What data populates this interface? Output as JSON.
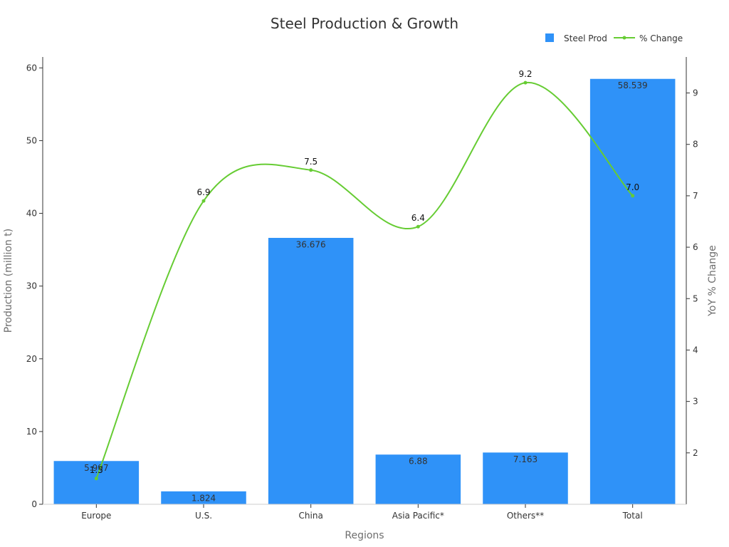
{
  "chart_data": {
    "type": "bar",
    "title": "Steel Production & Growth",
    "xlabel": "Regions",
    "ylabel": "Production (million t)",
    "y2label": "YoY % Change",
    "categories": [
      "Europe",
      "U.S.",
      "China",
      "Asia Pacific*",
      "Others**",
      "Total"
    ],
    "series": [
      {
        "name": "Steel Prod",
        "type": "bar",
        "axis": "left",
        "color": "#2f92f8",
        "values": [
          5.997,
          1.824,
          36.676,
          6.88,
          7.163,
          58.539
        ],
        "labels": [
          "5.997",
          "1.824",
          "36.676",
          "6.88",
          "7.163",
          "58.539"
        ]
      },
      {
        "name": "% Change",
        "type": "line",
        "axis": "right",
        "color": "#66cc33",
        "values": [
          1.5,
          6.9,
          7.5,
          6.4,
          9.2,
          7.0
        ],
        "labels": [
          "1.5",
          "6.9",
          "7.5",
          "6.4",
          "9.2",
          "7.0"
        ]
      }
    ],
    "ylim": [
      0,
      61.5
    ],
    "y2lim": [
      1,
      9.7
    ],
    "yticks": [
      0,
      10,
      20,
      30,
      40,
      50,
      60
    ],
    "y2ticks": [
      2,
      3,
      4,
      5,
      6,
      7,
      8,
      9
    ],
    "legend": "top-right",
    "grid": false
  }
}
